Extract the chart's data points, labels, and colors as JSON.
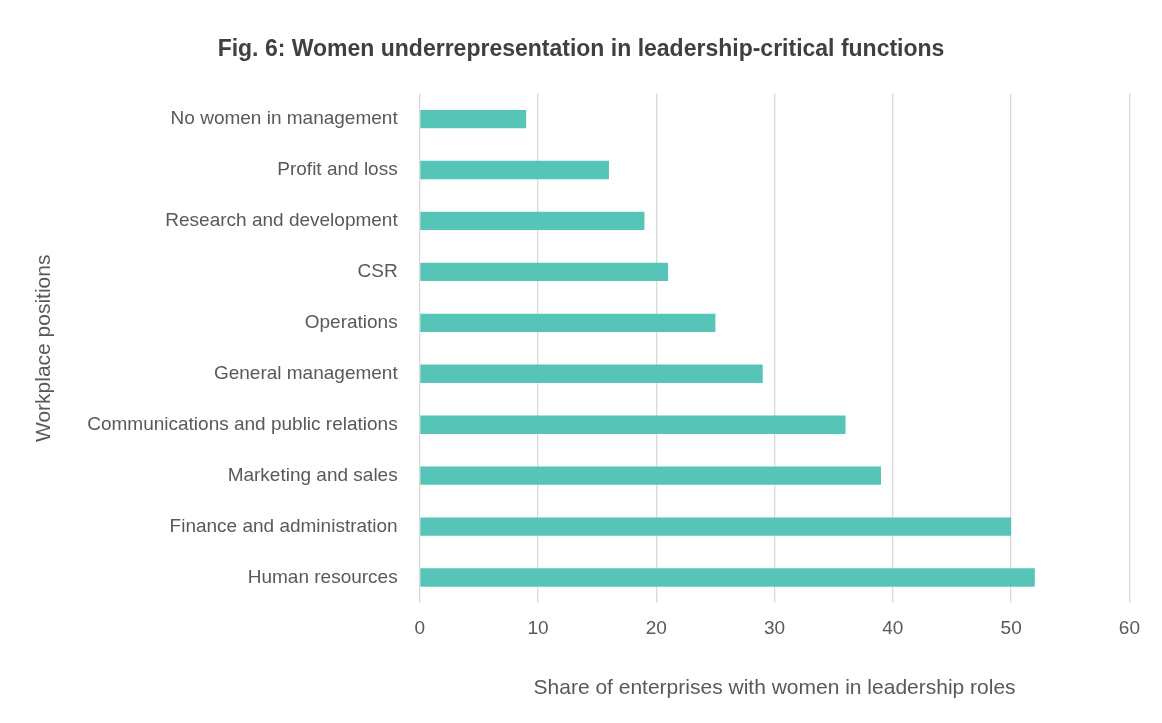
{
  "chart_data": {
    "type": "bar",
    "orientation": "horizontal",
    "title": "Fig. 6: Women underrepresentation in leadership-critical functions",
    "xlabel": "Share of enterprises with women in leadership roles",
    "ylabel": "Workplace positions",
    "categories": [
      "No women in management",
      "Profit and loss",
      "Research and development",
      "CSR",
      "Operations",
      "General management",
      "Communications and public relations",
      "Marketing and sales",
      "Finance and administration",
      "Human resources"
    ],
    "values": [
      9,
      16,
      19,
      21,
      25,
      29,
      36,
      39,
      50,
      52
    ],
    "color": "#56c5b8",
    "xlim": [
      0,
      60
    ],
    "xticks": [
      0,
      10,
      20,
      30,
      40,
      50,
      60
    ],
    "grid": "x",
    "legend": false
  }
}
